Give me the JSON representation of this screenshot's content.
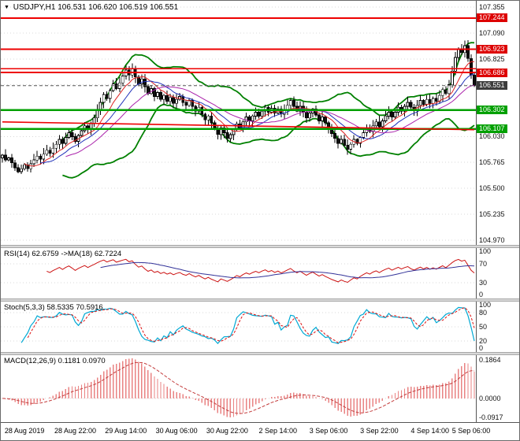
{
  "header": {
    "symbol_tf": "USDJPY,H1",
    "ohlc": "106.531 106.620 106.519 106.551"
  },
  "rsi_panel": {
    "label": "RSI(14) 62.6759 ->MA(18) 62.7224"
  },
  "stoch_panel": {
    "label": "Stoch(5,3,3) 58.5335 70.5916"
  },
  "macd_panel": {
    "label": "MACD(12,26,9) 0.1181 0.0970"
  },
  "axis_labels": {
    "price_ticks": [
      "107.355",
      "107.090",
      "106.825",
      "106.560",
      "106.295",
      "106.030",
      "105.765",
      "105.500",
      "105.235",
      "104.970"
    ],
    "level_labels": [
      {
        "text": "107.244",
        "color": "#dd0000"
      },
      {
        "text": "106.923",
        "color": "#dd0000"
      },
      {
        "text": "106.686",
        "color": "#dd0000"
      },
      {
        "text": "106.551",
        "color": "#3c3c3c"
      },
      {
        "text": "106.302",
        "color": "#00a000"
      },
      {
        "text": "106.107",
        "color": "#00a000"
      }
    ],
    "rsi_ticks": [
      "100",
      "70",
      "30",
      "0"
    ],
    "stoch_ticks": [
      "100",
      "80",
      "50",
      "20",
      "0"
    ],
    "macd_ticks": [
      "0.1864",
      "0.0000",
      "-0.0917"
    ]
  },
  "colors": {
    "up_body": "#ffffff",
    "down_body": "#111111",
    "band": "#008000",
    "grid": "#d8d8d8",
    "rsi": "#cc1111",
    "rsi_ma": "#333399",
    "stoch_k": "#00a9d4",
    "stoch_d": "#dd1111",
    "macd_hist": "#e98383",
    "macd_signal": "#c33c3c"
  },
  "chart_data": [
    {
      "type": "candlestick",
      "title": "USDJPY,H1",
      "ylim": [
        104.92,
        107.42
      ],
      "y_ticks": [
        107.355,
        107.09,
        106.825,
        106.56,
        106.295,
        106.03,
        105.765,
        105.5,
        105.235,
        104.97
      ],
      "x_labels": [
        "28 Aug 2019",
        "28 Aug 22:00",
        "29 Aug 14:00",
        "30 Aug 06:00",
        "30 Aug 22:00",
        "2 Sep 14:00",
        "3 Sep 06:00",
        "3 Sep 22:00",
        "4 Sep 14:00",
        "5 Sep 06:00"
      ],
      "x_label_indices": [
        7,
        23,
        39,
        55,
        71,
        87,
        103,
        119,
        135,
        148
      ],
      "last_ohlc": {
        "open": 106.531,
        "high": 106.62,
        "low": 106.519,
        "close": 106.551
      },
      "closes": [
        105.84,
        105.79,
        105.81,
        105.76,
        105.71,
        105.67,
        105.7,
        105.74,
        105.7,
        105.75,
        105.79,
        105.83,
        105.8,
        105.85,
        105.89,
        105.86,
        105.91,
        105.95,
        106.0,
        105.96,
        106.02,
        106.07,
        106.03,
        105.98,
        106.04,
        106.09,
        106.14,
        106.1,
        106.16,
        106.22,
        106.3,
        106.38,
        106.46,
        106.42,
        106.5,
        106.57,
        106.52,
        106.58,
        106.65,
        106.71,
        106.66,
        106.72,
        106.64,
        106.57,
        106.62,
        106.54,
        106.47,
        106.52,
        106.44,
        106.48,
        106.41,
        106.45,
        106.39,
        106.43,
        106.37,
        106.41,
        106.44,
        106.38,
        106.35,
        106.4,
        106.34,
        106.29,
        106.33,
        106.26,
        106.2,
        106.24,
        106.17,
        106.11,
        106.05,
        106.12,
        106.07,
        106.01,
        106.05,
        106.1,
        106.16,
        106.12,
        106.18,
        106.23,
        106.19,
        106.24,
        106.28,
        106.24,
        106.29,
        106.33,
        106.28,
        106.32,
        106.27,
        106.31,
        106.26,
        106.3,
        106.35,
        106.4,
        106.34,
        106.29,
        106.34,
        106.28,
        106.22,
        106.27,
        106.31,
        106.25,
        106.19,
        106.23,
        106.17,
        106.12,
        106.06,
        106.01,
        105.96,
        106.0,
        105.94,
        105.9,
        105.95,
        106.0,
        105.96,
        106.02,
        106.07,
        106.12,
        106.08,
        106.14,
        106.18,
        106.13,
        106.19,
        106.24,
        106.28,
        106.23,
        106.28,
        106.33,
        106.29,
        106.34,
        106.38,
        106.33,
        106.3,
        106.35,
        106.4,
        106.36,
        106.41,
        106.37,
        106.42,
        106.39,
        106.45,
        106.51,
        106.47,
        106.56,
        106.7,
        106.84,
        106.93,
        106.89,
        106.96,
        106.83,
        106.66,
        106.551
      ],
      "overlays": {
        "bollinger": {
          "period": 20,
          "deviation": 2.0,
          "color": "#008000"
        },
        "moving_averages": [
          {
            "period": 8,
            "color": "#dd2222"
          },
          {
            "period": 13,
            "color": "#2233bb"
          },
          {
            "period": 21,
            "color": "#aa22aa"
          }
        ],
        "levels": [
          {
            "value": 107.244,
            "color": "#ee0000",
            "width": 2
          },
          {
            "value": 106.923,
            "color": "#ee0000",
            "width": 2
          },
          {
            "value": 106.725,
            "color": "#ee0000",
            "width": 1.6
          },
          {
            "value": 106.686,
            "color": "#ee0000",
            "width": 2
          },
          {
            "value": 106.302,
            "color": "#00a000",
            "width": 2.4
          },
          {
            "value": 106.107,
            "color": "#00a000",
            "width": 2.4
          }
        ],
        "bid_line": {
          "value": 106.551,
          "color": "#555555"
        },
        "trendline": {
          "from_index": 0,
          "from_price": 106.18,
          "to_index": 149,
          "to_price": 106.1,
          "color": "#ee0000"
        }
      }
    },
    {
      "type": "line",
      "name": "RSI",
      "period": 14,
      "ma_period": 18,
      "value": 62.6759,
      "ma_value": 62.7224,
      "ylim": [
        0,
        100
      ],
      "ticks": [
        100,
        70,
        30,
        0
      ],
      "level_lines": [
        70,
        30
      ]
    },
    {
      "type": "line",
      "name": "Stochastic",
      "k_period": 5,
      "slowing": 3,
      "d_period": 3,
      "value": 58.5335,
      "signal_value": 70.5916,
      "ylim": [
        0,
        100
      ],
      "ticks": [
        100,
        80,
        50,
        20,
        0
      ],
      "level_lines": [
        80,
        50,
        20
      ]
    },
    {
      "type": "macd",
      "name": "MACD",
      "fast": 12,
      "slow": 26,
      "signal_period": 9,
      "value": 0.1181,
      "signal_value": 0.097,
      "ylim": [
        -0.115,
        0.21
      ],
      "ticks": [
        0.1864,
        0.0,
        -0.0917
      ]
    }
  ]
}
